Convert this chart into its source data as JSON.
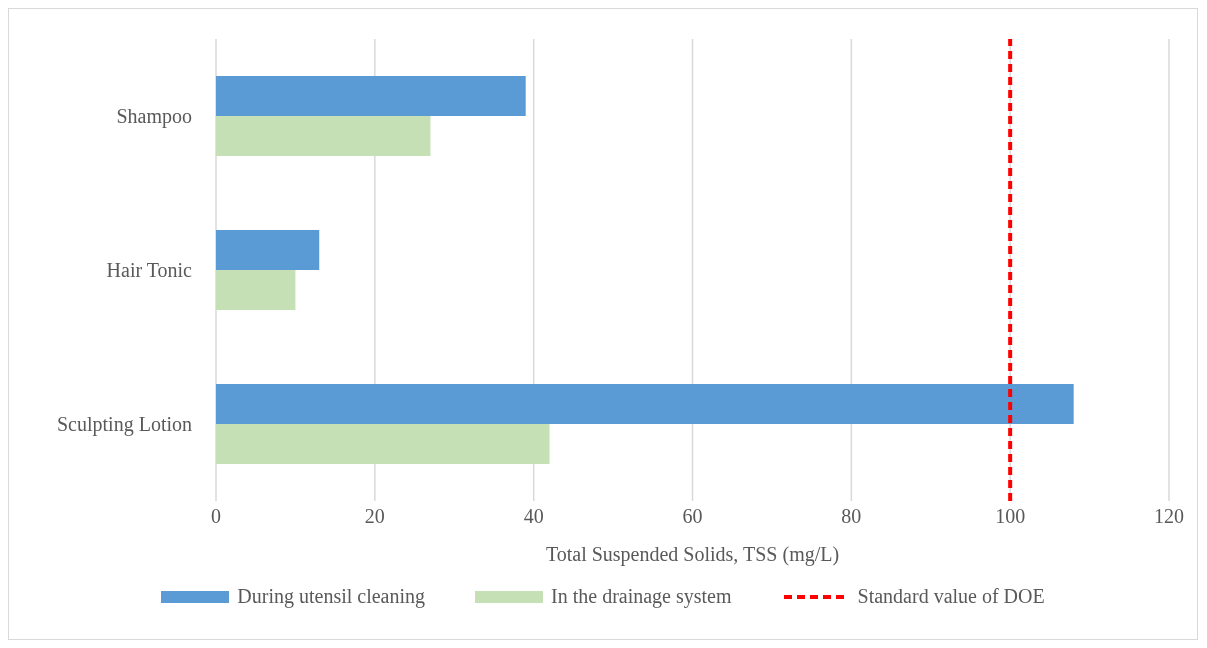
{
  "chart_data": {
    "type": "bar",
    "orientation": "horizontal",
    "xlabel": "Total Suspended Solids, TSS (mg/L)",
    "categories": [
      "Shampoo",
      "Hair Tonic",
      "Sculpting Lotion"
    ],
    "series": [
      {
        "name": "During utensil cleaning",
        "color": "#5b9bd5",
        "values": [
          39,
          13,
          108
        ]
      },
      {
        "name": "In the drainage system",
        "color": "#c5e0b4",
        "values": [
          27,
          10,
          42
        ]
      }
    ],
    "xlim": [
      0,
      120
    ],
    "xticks": [
      0,
      20,
      40,
      60,
      80,
      100,
      120
    ],
    "grid": "x",
    "legend": "bottom",
    "ref_lines": [
      {
        "axis": "x",
        "value": 100,
        "label": "Standard value of DOE",
        "color": "#ff0000",
        "line_style": "dashed"
      }
    ]
  }
}
